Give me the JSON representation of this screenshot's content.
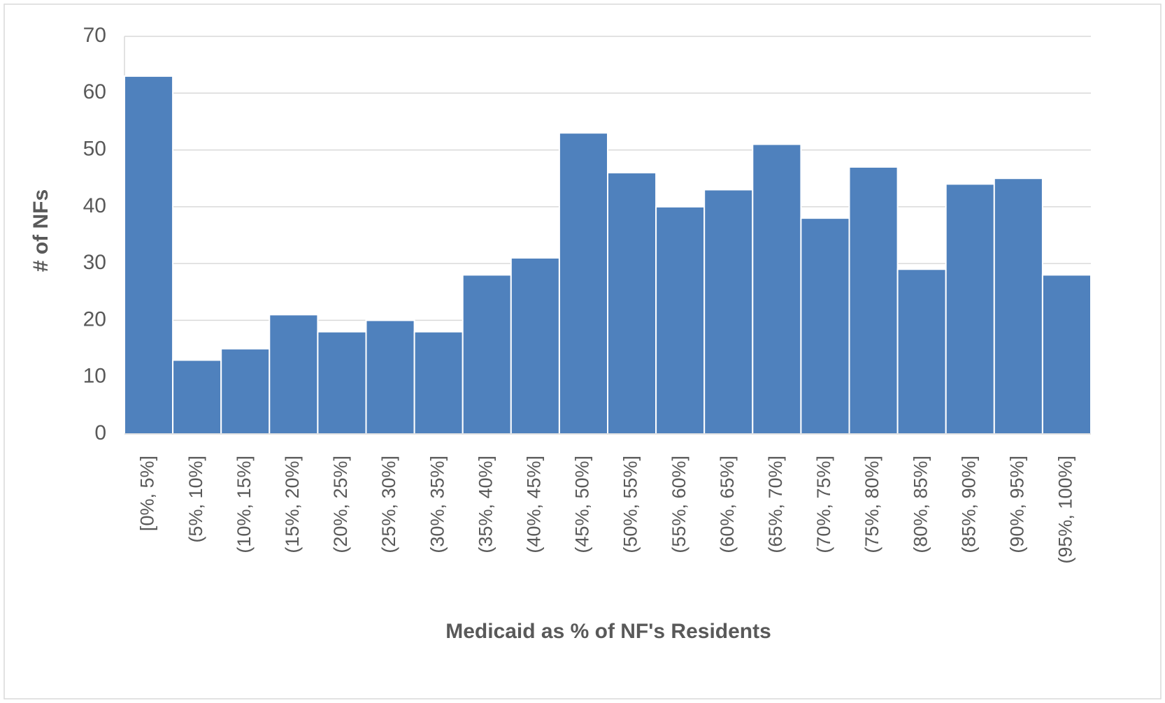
{
  "chart_data": {
    "type": "bar",
    "x_label": "Medicaid as % of NF's Residents",
    "y_label": "# of NFs",
    "categories": [
      "[0%, 5%]",
      "(5%, 10%]",
      "(10%, 15%]",
      "(15%, 20%]",
      "(20%, 25%]",
      "(25%, 30%]",
      "(30%, 35%]",
      "(35%, 40%]",
      "(40%, 45%]",
      "(45%, 50%]",
      "(50%, 55%]",
      "(55%, 60%]",
      "(60%, 65%]",
      "(65%, 70%]",
      "(70%, 75%]",
      "(75%, 80%]",
      "(80%, 85%]",
      "(85%, 90%]",
      "(90%, 95%]",
      "(95%, 100%]"
    ],
    "values": [
      63,
      13,
      15,
      21,
      18,
      20,
      18,
      28,
      31,
      53,
      46,
      40,
      43,
      51,
      38,
      47,
      29,
      44,
      45,
      28
    ],
    "color": "#4f81bd",
    "ylim": [
      0,
      70
    ],
    "yticks": [
      0,
      10,
      20,
      30,
      40,
      50,
      60,
      70
    ],
    "grid": true
  }
}
